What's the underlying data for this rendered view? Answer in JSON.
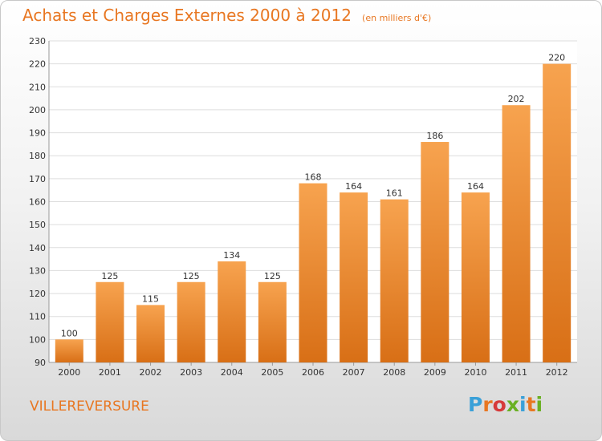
{
  "header": {
    "title": "Achats et Charges Externes 2000 à 2012",
    "subtitle": "(en milliers d'€)"
  },
  "footer": {
    "commune": "VILLEREVERSURE",
    "logo_text": "Proxiti"
  },
  "colors": {
    "bar_light": "#f7a34f",
    "bar_dark": "#d86f16",
    "accent": "#e87722",
    "grid": "#dddddd",
    "axis_text": "#333333"
  },
  "chart_data": {
    "type": "bar",
    "categories": [
      "2000",
      "2001",
      "2002",
      "2003",
      "2004",
      "2005",
      "2006",
      "2007",
      "2008",
      "2009",
      "2010",
      "2011",
      "2012"
    ],
    "values": [
      100,
      125,
      115,
      125,
      134,
      125,
      168,
      164,
      161,
      186,
      164,
      202,
      220
    ],
    "ylim": [
      90,
      230
    ],
    "yticks": [
      90,
      100,
      110,
      120,
      130,
      140,
      150,
      160,
      170,
      180,
      190,
      200,
      210,
      220,
      230
    ],
    "grid": true,
    "xlabel": "",
    "ylabel": ""
  }
}
